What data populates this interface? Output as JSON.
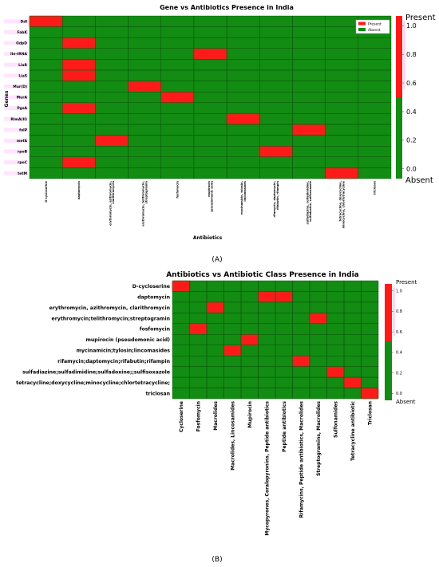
{
  "colors": {
    "present": "#ff1a1a",
    "absent": "#128c12",
    "grid": "#0b4f0b",
    "highlight": "#ffb3ff"
  },
  "legend_present": "Present",
  "legend_absent": "Absent",
  "chart_data": [
    {
      "type": "heatmap",
      "title": "Gene vs Antibiotics Presence in India",
      "xlabel": "Antibiotics",
      "ylabel": "Genes",
      "panel_label": "(A)",
      "rows": [
        "Ddl",
        "FabK",
        "GdpD",
        "Ile-tRNA",
        "LiaR",
        "LiaS",
        "Mur(D)",
        "MurA",
        "PgsA",
        "RlmA(II)",
        "folP",
        "mefA",
        "rpoB",
        "rpoC",
        "tetM"
      ],
      "columns": [
        "D-cycloserine",
        "daptomycin",
        "erythromycin, azithromycin, clarithromycin",
        "erythromycin, telithromycin, streptogramin",
        "fosfomycin",
        "mupirocin (pseudomonic acid)",
        "mycinamicin, tylosin, lincomasides",
        "rifamycin, daptomycin, rifabutin, rifampin",
        "sulfadiazine, sulfadimidine, sulfadoxine, sulfisoxazole",
        "tetracycline, doxycycline, minocycline, chlortetracycline",
        "triclosan"
      ],
      "values": [
        [
          1,
          0,
          0,
          0,
          0,
          0,
          0,
          0,
          0,
          0,
          0
        ],
        [
          0,
          0,
          0,
          0,
          0,
          0,
          0,
          0,
          0,
          0,
          0
        ],
        [
          0,
          1,
          0,
          0,
          0,
          0,
          0,
          0,
          0,
          0,
          0
        ],
        [
          0,
          0,
          0,
          0,
          0,
          1,
          0,
          0,
          0,
          0,
          0
        ],
        [
          0,
          1,
          0,
          0,
          0,
          0,
          0,
          0,
          0,
          0,
          0
        ],
        [
          0,
          1,
          0,
          0,
          0,
          0,
          0,
          0,
          0,
          0,
          0
        ],
        [
          0,
          0,
          0,
          1,
          0,
          0,
          0,
          0,
          0,
          0,
          0
        ],
        [
          0,
          0,
          0,
          0,
          1,
          0,
          0,
          0,
          0,
          0,
          0
        ],
        [
          0,
          1,
          0,
          0,
          0,
          0,
          0,
          0,
          0,
          0,
          0
        ],
        [
          0,
          0,
          0,
          0,
          0,
          0,
          1,
          0,
          0,
          0,
          0
        ],
        [
          0,
          0,
          0,
          0,
          0,
          0,
          0,
          0,
          1,
          0,
          0
        ],
        [
          0,
          0,
          1,
          0,
          0,
          0,
          0,
          0,
          0,
          0,
          0
        ],
        [
          0,
          0,
          0,
          0,
          0,
          0,
          0,
          1,
          0,
          0,
          0
        ],
        [
          0,
          1,
          0,
          0,
          0,
          0,
          0,
          0,
          0,
          0,
          0
        ],
        [
          0,
          0,
          0,
          0,
          0,
          0,
          0,
          0,
          0,
          1,
          0
        ]
      ],
      "colorbar_ticks": [
        "0.0",
        "0.2",
        "0.4",
        "0.6",
        "0.8",
        "1.0"
      ],
      "colorbar_top_label": "Present",
      "colorbar_bottom_label": "Absent"
    },
    {
      "type": "heatmap",
      "title": "Antibiotics vs Antibiotic Class Presence in India",
      "panel_label": "(B)",
      "rows": [
        "D-cycloserine",
        "daptomycin",
        "erythromycin, azithromycin, clarithromycin",
        "erythromycin;telithromycin;streptogramin",
        "fosfomycin",
        "mupirocin (pseudomonic acid)",
        "mycinamicin;tylosin;lincomasides",
        "rifamycin;daptomycin;rifabutin;rifampin",
        "sulfadiazine;sulfadimidine;sulfadoxine;;sulfisoxazole",
        "tetracycline;doxycycline;minocycline;chlortetracycline;",
        "triclosan"
      ],
      "columns": [
        "Cycloserine",
        "Fosfomycin",
        "Macrolides",
        "Macrolides, Lincosamides",
        "Mupirocin",
        "Mycopyrones, Coralopyronins, Peptide antibiotics",
        "Peptide antibiotics",
        "Rifamycins, Peptide antibiotics, Macrolides",
        "Streptogramins, Macrolides",
        "Sulfonamides",
        "Tetracycline antibiotic",
        "Triclosan"
      ],
      "values": [
        [
          1,
          0,
          0,
          0,
          0,
          0,
          0,
          0,
          0,
          0,
          0,
          0
        ],
        [
          0,
          0,
          0,
          0,
          0,
          1,
          1,
          0,
          0,
          0,
          0,
          0
        ],
        [
          0,
          0,
          1,
          0,
          0,
          0,
          0,
          0,
          0,
          0,
          0,
          0
        ],
        [
          0,
          0,
          0,
          0,
          0,
          0,
          0,
          0,
          1,
          0,
          0,
          0
        ],
        [
          0,
          1,
          0,
          0,
          0,
          0,
          0,
          0,
          0,
          0,
          0,
          0
        ],
        [
          0,
          0,
          0,
          0,
          1,
          0,
          0,
          0,
          0,
          0,
          0,
          0
        ],
        [
          0,
          0,
          0,
          1,
          0,
          0,
          0,
          0,
          0,
          0,
          0,
          0
        ],
        [
          0,
          0,
          0,
          0,
          0,
          0,
          0,
          1,
          0,
          0,
          0,
          0
        ],
        [
          0,
          0,
          0,
          0,
          0,
          0,
          0,
          0,
          0,
          1,
          0,
          0
        ],
        [
          0,
          0,
          0,
          0,
          0,
          0,
          0,
          0,
          0,
          0,
          1,
          0
        ],
        [
          0,
          0,
          0,
          0,
          0,
          0,
          0,
          0,
          0,
          0,
          0,
          1
        ]
      ],
      "colorbar_ticks": [
        "0.0",
        "0.2",
        "0.4",
        "0.6",
        "0.8",
        "1.0"
      ],
      "colorbar_top_label": "Present",
      "colorbar_bottom_label": "Absent"
    }
  ]
}
